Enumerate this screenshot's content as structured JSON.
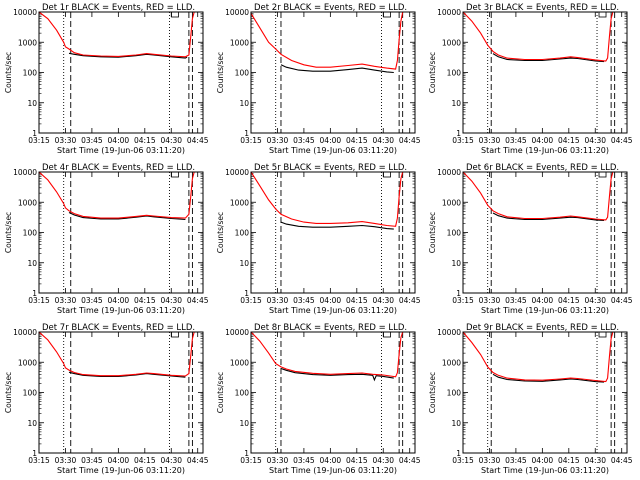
{
  "figure": {
    "xlabel": "Start Time (19-Jun-06 03:11:20)",
    "ylabel": "Counts/sec"
  },
  "chart_data": {
    "type": "line",
    "scale_y": "log",
    "ylim": [
      1,
      10000
    ],
    "y_ticks": [
      1,
      10,
      100,
      1000,
      10000
    ],
    "x_range_minutes": [
      195,
      288
    ],
    "x_ticks": [
      {
        "label": "03:15",
        "minute": 195
      },
      {
        "label": "03:30",
        "minute": 210
      },
      {
        "label": "03:45",
        "minute": 225
      },
      {
        "label": "04:00",
        "minute": 240
      },
      {
        "label": "04:15",
        "minute": 255
      },
      {
        "label": "04:30",
        "minute": 270
      },
      {
        "label": "04:45",
        "minute": 285
      }
    ],
    "series_colors": {
      "events": "#000000",
      "lld": "#ff0000"
    },
    "grid": false,
    "panels": [
      {
        "title": "Det 1r BLACK = Events, RED = LLD.",
        "lld": [
          [
            195,
            10000
          ],
          [
            200,
            6000
          ],
          [
            205,
            2500
          ],
          [
            209,
            1000
          ],
          [
            210,
            700
          ],
          [
            212,
            600
          ],
          [
            215,
            450
          ],
          [
            220,
            380
          ],
          [
            230,
            350
          ],
          [
            240,
            340
          ],
          [
            250,
            380
          ],
          [
            256,
            420
          ],
          [
            260,
            400
          ],
          [
            270,
            350
          ],
          [
            278,
            330
          ],
          [
            280,
            380
          ],
          [
            281,
            1500
          ],
          [
            282,
            6000
          ],
          [
            283,
            10000
          ]
        ],
        "events": [
          [
            212,
            430
          ],
          [
            215,
            400
          ],
          [
            220,
            360
          ],
          [
            230,
            330
          ],
          [
            240,
            320
          ],
          [
            250,
            360
          ],
          [
            256,
            400
          ],
          [
            260,
            380
          ],
          [
            270,
            330
          ],
          [
            278,
            300
          ],
          [
            279,
            320
          ]
        ],
        "dotted": [
          209,
          269
        ],
        "dashed": [
          213,
          280,
          282
        ]
      },
      {
        "title": "Det 2r BLACK = Events, RED = LLD.",
        "lld": [
          [
            195,
            9000
          ],
          [
            200,
            3000
          ],
          [
            205,
            1000
          ],
          [
            209,
            600
          ],
          [
            212,
            400
          ],
          [
            218,
            250
          ],
          [
            225,
            180
          ],
          [
            232,
            150
          ],
          [
            240,
            150
          ],
          [
            250,
            170
          ],
          [
            258,
            190
          ],
          [
            265,
            160
          ],
          [
            272,
            140
          ],
          [
            277,
            130
          ],
          [
            278,
            250
          ],
          [
            279,
            1200
          ],
          [
            280,
            5000
          ],
          [
            281,
            10000
          ]
        ],
        "events": [
          [
            212,
            180
          ],
          [
            215,
            150
          ],
          [
            222,
            120
          ],
          [
            230,
            110
          ],
          [
            240,
            110
          ],
          [
            250,
            125
          ],
          [
            258,
            140
          ],
          [
            265,
            120
          ],
          [
            272,
            105
          ],
          [
            276,
            100
          ]
        ],
        "dotted": [
          209,
          269
        ],
        "dashed": [
          212,
          279,
          281
        ]
      },
      {
        "title": "Det 3r BLACK = Events, RED = LLD.",
        "lld": [
          [
            195,
            10000
          ],
          [
            200,
            5000
          ],
          [
            205,
            2000
          ],
          [
            209,
            800
          ],
          [
            212,
            500
          ],
          [
            215,
            380
          ],
          [
            220,
            300
          ],
          [
            230,
            270
          ],
          [
            240,
            270
          ],
          [
            250,
            300
          ],
          [
            256,
            330
          ],
          [
            260,
            310
          ],
          [
            270,
            260
          ],
          [
            276,
            240
          ],
          [
            277,
            300
          ],
          [
            278,
            1500
          ],
          [
            279,
            6000
          ],
          [
            280,
            10000
          ]
        ],
        "events": [
          [
            212,
            420
          ],
          [
            215,
            330
          ],
          [
            220,
            270
          ],
          [
            230,
            250
          ],
          [
            240,
            250
          ],
          [
            250,
            280
          ],
          [
            256,
            300
          ],
          [
            260,
            290
          ],
          [
            270,
            240
          ],
          [
            275,
            230
          ]
        ],
        "dotted": [
          209,
          271
        ],
        "dashed": [
          211,
          279,
          281
        ]
      },
      {
        "title": "Det 4r BLACK = Events, RED = LLD.",
        "lld": [
          [
            195,
            10000
          ],
          [
            200,
            5500
          ],
          [
            205,
            2200
          ],
          [
            209,
            900
          ],
          [
            210,
            650
          ],
          [
            212,
            520
          ],
          [
            215,
            420
          ],
          [
            220,
            340
          ],
          [
            230,
            300
          ],
          [
            240,
            300
          ],
          [
            250,
            340
          ],
          [
            256,
            370
          ],
          [
            260,
            350
          ],
          [
            270,
            310
          ],
          [
            278,
            300
          ],
          [
            280,
            400
          ],
          [
            281,
            1500
          ],
          [
            282,
            6000
          ],
          [
            283,
            10000
          ]
        ],
        "events": [
          [
            212,
            460
          ],
          [
            215,
            380
          ],
          [
            220,
            310
          ],
          [
            230,
            280
          ],
          [
            240,
            280
          ],
          [
            250,
            320
          ],
          [
            256,
            350
          ],
          [
            260,
            330
          ],
          [
            270,
            290
          ],
          [
            278,
            270
          ]
        ],
        "dotted": [
          209,
          269
        ],
        "dashed": [
          213,
          280,
          282
        ]
      },
      {
        "title": "Det 5r BLACK = Events, RED = LLD.",
        "lld": [
          [
            195,
            10000
          ],
          [
            200,
            3500
          ],
          [
            205,
            1200
          ],
          [
            209,
            600
          ],
          [
            212,
            400
          ],
          [
            218,
            280
          ],
          [
            225,
            220
          ],
          [
            232,
            200
          ],
          [
            240,
            200
          ],
          [
            250,
            210
          ],
          [
            258,
            230
          ],
          [
            265,
            200
          ],
          [
            272,
            170
          ],
          [
            277,
            160
          ],
          [
            278,
            300
          ],
          [
            279,
            1500
          ],
          [
            280,
            6000
          ],
          [
            281,
            10000
          ]
        ],
        "events": [
          [
            212,
            220
          ],
          [
            215,
            190
          ],
          [
            222,
            160
          ],
          [
            230,
            150
          ],
          [
            240,
            150
          ],
          [
            250,
            160
          ],
          [
            258,
            170
          ],
          [
            265,
            155
          ],
          [
            272,
            135
          ],
          [
            276,
            130
          ]
        ],
        "dotted": [
          209,
          269
        ],
        "dashed": [
          212,
          279,
          281
        ]
      },
      {
        "title": "Det 6r BLACK = Events, RED = LLD.",
        "lld": [
          [
            195,
            10000
          ],
          [
            200,
            5000
          ],
          [
            205,
            2000
          ],
          [
            209,
            800
          ],
          [
            212,
            520
          ],
          [
            215,
            420
          ],
          [
            220,
            330
          ],
          [
            230,
            290
          ],
          [
            240,
            290
          ],
          [
            250,
            320
          ],
          [
            256,
            350
          ],
          [
            260,
            330
          ],
          [
            270,
            280
          ],
          [
            276,
            260
          ],
          [
            277,
            320
          ],
          [
            278,
            1500
          ],
          [
            279,
            6000
          ],
          [
            280,
            10000
          ]
        ],
        "events": [
          [
            212,
            440
          ],
          [
            215,
            360
          ],
          [
            220,
            300
          ],
          [
            230,
            270
          ],
          [
            240,
            270
          ],
          [
            250,
            300
          ],
          [
            256,
            320
          ],
          [
            260,
            310
          ],
          [
            270,
            260
          ],
          [
            275,
            250
          ]
        ],
        "dotted": [
          209,
          271
        ],
        "dashed": [
          211,
          279,
          281
        ]
      },
      {
        "title": "Det 7r BLACK = Events, RED = LLD.",
        "lld": [
          [
            195,
            10000
          ],
          [
            200,
            5500
          ],
          [
            205,
            2200
          ],
          [
            209,
            900
          ],
          [
            210,
            650
          ],
          [
            212,
            550
          ],
          [
            215,
            460
          ],
          [
            220,
            390
          ],
          [
            230,
            360
          ],
          [
            240,
            360
          ],
          [
            250,
            400
          ],
          [
            256,
            440
          ],
          [
            260,
            420
          ],
          [
            270,
            370
          ],
          [
            278,
            350
          ],
          [
            280,
            420
          ],
          [
            281,
            1600
          ],
          [
            282,
            6000
          ],
          [
            283,
            10000
          ]
        ],
        "events": [
          [
            212,
            470
          ],
          [
            215,
            420
          ],
          [
            220,
            370
          ],
          [
            230,
            340
          ],
          [
            240,
            340
          ],
          [
            250,
            380
          ],
          [
            256,
            420
          ],
          [
            260,
            400
          ],
          [
            270,
            350
          ],
          [
            278,
            320
          ]
        ],
        "dotted": [
          209,
          269
        ],
        "dashed": [
          213,
          280,
          282
        ]
      },
      {
        "title": "Det 8r BLACK = Events, RED = LLD.",
        "lld": [
          [
            195,
            10000
          ],
          [
            200,
            5000
          ],
          [
            205,
            2000
          ],
          [
            209,
            900
          ],
          [
            212,
            700
          ],
          [
            215,
            600
          ],
          [
            220,
            500
          ],
          [
            230,
            430
          ],
          [
            240,
            400
          ],
          [
            250,
            420
          ],
          [
            258,
            440
          ],
          [
            264,
            400
          ],
          [
            270,
            380
          ],
          [
            277,
            330
          ],
          [
            278,
            450
          ],
          [
            279,
            1800
          ],
          [
            280,
            6500
          ],
          [
            281,
            10000
          ]
        ],
        "events": [
          [
            212,
            620
          ],
          [
            215,
            540
          ],
          [
            220,
            450
          ],
          [
            230,
            390
          ],
          [
            240,
            370
          ],
          [
            250,
            390
          ],
          [
            258,
            400
          ],
          [
            264,
            370
          ],
          [
            265,
            260
          ],
          [
            266,
            360
          ],
          [
            270,
            340
          ],
          [
            276,
            300
          ]
        ],
        "dotted": [
          209,
          269
        ],
        "dashed": [
          212,
          279,
          281
        ]
      },
      {
        "title": "Det 9r BLACK = Events, RED = LLD.",
        "lld": [
          [
            195,
            10000
          ],
          [
            200,
            4500
          ],
          [
            205,
            1800
          ],
          [
            209,
            700
          ],
          [
            212,
            460
          ],
          [
            215,
            370
          ],
          [
            220,
            300
          ],
          [
            230,
            260
          ],
          [
            240,
            255
          ],
          [
            250,
            280
          ],
          [
            256,
            300
          ],
          [
            260,
            290
          ],
          [
            270,
            250
          ],
          [
            276,
            230
          ],
          [
            277,
            300
          ],
          [
            278,
            1500
          ],
          [
            279,
            6000
          ],
          [
            280,
            10000
          ]
        ],
        "events": [
          [
            212,
            400
          ],
          [
            215,
            320
          ],
          [
            220,
            270
          ],
          [
            230,
            240
          ],
          [
            240,
            235
          ],
          [
            250,
            260
          ],
          [
            256,
            280
          ],
          [
            260,
            270
          ],
          [
            270,
            230
          ],
          [
            275,
            220
          ]
        ],
        "dotted": [
          209,
          271
        ],
        "dashed": [
          211,
          279,
          281
        ]
      }
    ]
  }
}
